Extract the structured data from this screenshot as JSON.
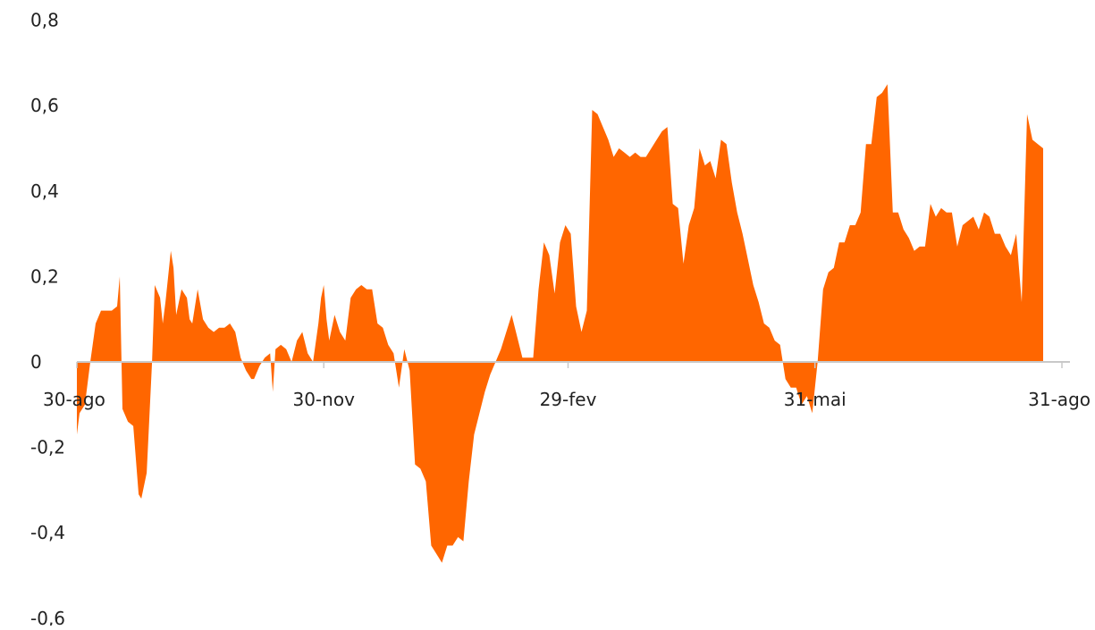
{
  "chart_data": {
    "type": "area",
    "title": "",
    "xlabel": "",
    "ylabel": "",
    "color": "#ff6600",
    "zero_line_color": "#c8c8c8",
    "ylim": [
      -0.6,
      0.8
    ],
    "y_ticks": [
      {
        "value": 0.8,
        "label": "0,8"
      },
      {
        "value": 0.6,
        "label": "0,6"
      },
      {
        "value": 0.4,
        "label": "0,4"
      },
      {
        "value": 0.2,
        "label": "0,2"
      },
      {
        "value": 0,
        "label": "0"
      },
      {
        "value": -0.2,
        "label": "-0,2"
      },
      {
        "value": -0.4,
        "label": "-0,4"
      },
      {
        "value": -0.6,
        "label": "-0,6"
      }
    ],
    "x_ticks": [
      {
        "date": "2023-08-30",
        "label": "30-ago"
      },
      {
        "date": "2023-11-30",
        "label": "30-nov"
      },
      {
        "date": "2024-02-29",
        "label": "29-fev"
      },
      {
        "date": "2024-05-31",
        "label": "31-mai"
      },
      {
        "date": "2024-08-31",
        "label": "31-ago"
      }
    ],
    "xlim": [
      "2023-08-30",
      "2024-09-03"
    ],
    "grid": false,
    "legend": "none",
    "series": [
      {
        "points": [
          [
            "2023-08-30",
            -0.17
          ],
          [
            "2023-08-31",
            -0.12
          ],
          [
            "2023-09-02",
            -0.1
          ],
          [
            "2023-09-04",
            0.0
          ],
          [
            "2023-09-06",
            0.09
          ],
          [
            "2023-09-08",
            0.12
          ],
          [
            "2023-09-10",
            0.12
          ],
          [
            "2023-09-12",
            0.12
          ],
          [
            "2023-09-14",
            0.13
          ],
          [
            "2023-09-15",
            0.2
          ],
          [
            "2023-09-16",
            -0.11
          ],
          [
            "2023-09-18",
            -0.14
          ],
          [
            "2023-09-20",
            -0.15
          ],
          [
            "2023-09-22",
            -0.31
          ],
          [
            "2023-09-23",
            -0.32
          ],
          [
            "2023-09-25",
            -0.26
          ],
          [
            "2023-09-27",
            0.0
          ],
          [
            "2023-09-28",
            0.18
          ],
          [
            "2023-09-30",
            0.15
          ],
          [
            "2023-10-01",
            0.09
          ],
          [
            "2023-10-02",
            0.14
          ],
          [
            "2023-10-04",
            0.26
          ],
          [
            "2023-10-05",
            0.22
          ],
          [
            "2023-10-06",
            0.11
          ],
          [
            "2023-10-08",
            0.17
          ],
          [
            "2023-10-10",
            0.15
          ],
          [
            "2023-10-11",
            0.1
          ],
          [
            "2023-10-12",
            0.09
          ],
          [
            "2023-10-14",
            0.17
          ],
          [
            "2023-10-16",
            0.1
          ],
          [
            "2023-10-18",
            0.08
          ],
          [
            "2023-10-20",
            0.07
          ],
          [
            "2023-10-22",
            0.08
          ],
          [
            "2023-10-24",
            0.08
          ],
          [
            "2023-10-26",
            0.09
          ],
          [
            "2023-10-28",
            0.07
          ],
          [
            "2023-10-30",
            0.01
          ],
          [
            "2023-11-01",
            -0.02
          ],
          [
            "2023-11-03",
            -0.04
          ],
          [
            "2023-11-04",
            -0.04
          ],
          [
            "2023-11-06",
            -0.01
          ],
          [
            "2023-11-08",
            0.01
          ],
          [
            "2023-11-10",
            0.02
          ],
          [
            "2023-11-11",
            -0.07
          ],
          [
            "2023-11-12",
            0.03
          ],
          [
            "2023-11-14",
            0.04
          ],
          [
            "2023-11-16",
            0.03
          ],
          [
            "2023-11-18",
            0.0
          ],
          [
            "2023-11-20",
            0.05
          ],
          [
            "2023-11-22",
            0.07
          ],
          [
            "2023-11-24",
            0.02
          ],
          [
            "2023-11-26",
            0.0
          ],
          [
            "2023-11-28",
            0.09
          ],
          [
            "2023-11-29",
            0.15
          ],
          [
            "2023-11-30",
            0.18
          ],
          [
            "2023-12-01",
            0.1
          ],
          [
            "2023-12-02",
            0.05
          ],
          [
            "2023-12-04",
            0.11
          ],
          [
            "2023-12-06",
            0.07
          ],
          [
            "2023-12-08",
            0.05
          ],
          [
            "2023-12-10",
            0.15
          ],
          [
            "2023-12-12",
            0.17
          ],
          [
            "2023-12-14",
            0.18
          ],
          [
            "2023-12-16",
            0.17
          ],
          [
            "2023-12-18",
            0.17
          ],
          [
            "2023-12-20",
            0.09
          ],
          [
            "2023-12-22",
            0.08
          ],
          [
            "2023-12-24",
            0.04
          ],
          [
            "2023-12-26",
            0.02
          ],
          [
            "2023-12-28",
            -0.06
          ],
          [
            "2023-12-30",
            0.03
          ],
          [
            "2024-01-01",
            -0.02
          ],
          [
            "2024-01-03",
            -0.24
          ],
          [
            "2024-01-05",
            -0.25
          ],
          [
            "2024-01-07",
            -0.28
          ],
          [
            "2024-01-09",
            -0.43
          ],
          [
            "2024-01-11",
            -0.45
          ],
          [
            "2024-01-13",
            -0.47
          ],
          [
            "2024-01-15",
            -0.43
          ],
          [
            "2024-01-17",
            -0.43
          ],
          [
            "2024-01-19",
            -0.41
          ],
          [
            "2024-01-21",
            -0.42
          ],
          [
            "2024-01-23",
            -0.28
          ],
          [
            "2024-01-25",
            -0.17
          ],
          [
            "2024-01-27",
            -0.12
          ],
          [
            "2024-01-29",
            -0.07
          ],
          [
            "2024-01-31",
            -0.03
          ],
          [
            "2024-02-02",
            0.0
          ],
          [
            "2024-02-04",
            0.03
          ],
          [
            "2024-02-06",
            0.07
          ],
          [
            "2024-02-08",
            0.11
          ],
          [
            "2024-02-10",
            0.06
          ],
          [
            "2024-02-12",
            0.01
          ],
          [
            "2024-02-14",
            0.01
          ],
          [
            "2024-02-16",
            0.01
          ],
          [
            "2024-02-18",
            0.17
          ],
          [
            "2024-02-20",
            0.28
          ],
          [
            "2024-02-22",
            0.25
          ],
          [
            "2024-02-24",
            0.16
          ],
          [
            "2024-02-26",
            0.28
          ],
          [
            "2024-02-28",
            0.32
          ],
          [
            "2024-03-01",
            0.3
          ],
          [
            "2024-03-03",
            0.13
          ],
          [
            "2024-03-05",
            0.07
          ],
          [
            "2024-03-07",
            0.12
          ],
          [
            "2024-03-09",
            0.59
          ],
          [
            "2024-03-11",
            0.58
          ],
          [
            "2024-03-13",
            0.55
          ],
          [
            "2024-03-15",
            0.52
          ],
          [
            "2024-03-17",
            0.48
          ],
          [
            "2024-03-19",
            0.5
          ],
          [
            "2024-03-21",
            0.49
          ],
          [
            "2024-03-23",
            0.48
          ],
          [
            "2024-03-25",
            0.49
          ],
          [
            "2024-03-27",
            0.48
          ],
          [
            "2024-03-29",
            0.48
          ],
          [
            "2024-03-31",
            0.5
          ],
          [
            "2024-04-02",
            0.52
          ],
          [
            "2024-04-04",
            0.54
          ],
          [
            "2024-04-06",
            0.55
          ],
          [
            "2024-04-08",
            0.37
          ],
          [
            "2024-04-10",
            0.36
          ],
          [
            "2024-04-12",
            0.23
          ],
          [
            "2024-04-14",
            0.32
          ],
          [
            "2024-04-16",
            0.36
          ],
          [
            "2024-04-18",
            0.5
          ],
          [
            "2024-04-20",
            0.46
          ],
          [
            "2024-04-22",
            0.47
          ],
          [
            "2024-04-24",
            0.43
          ],
          [
            "2024-04-26",
            0.52
          ],
          [
            "2024-04-28",
            0.51
          ],
          [
            "2024-04-30",
            0.42
          ],
          [
            "2024-05-02",
            0.35
          ],
          [
            "2024-05-04",
            0.3
          ],
          [
            "2024-05-06",
            0.24
          ],
          [
            "2024-05-08",
            0.18
          ],
          [
            "2024-05-10",
            0.14
          ],
          [
            "2024-05-12",
            0.09
          ],
          [
            "2024-05-14",
            0.08
          ],
          [
            "2024-05-16",
            0.05
          ],
          [
            "2024-05-18",
            0.04
          ],
          [
            "2024-05-20",
            -0.04
          ],
          [
            "2024-05-22",
            -0.06
          ],
          [
            "2024-05-24",
            -0.06
          ],
          [
            "2024-05-26",
            -0.1
          ],
          [
            "2024-05-28",
            -0.08
          ],
          [
            "2024-05-30",
            -0.12
          ],
          [
            "2024-06-01",
            0.0
          ],
          [
            "2024-06-03",
            0.17
          ],
          [
            "2024-06-05",
            0.21
          ],
          [
            "2024-06-07",
            0.22
          ],
          [
            "2024-06-09",
            0.28
          ],
          [
            "2024-06-11",
            0.28
          ],
          [
            "2024-06-13",
            0.32
          ],
          [
            "2024-06-15",
            0.32
          ],
          [
            "2024-06-17",
            0.35
          ],
          [
            "2024-06-19",
            0.51
          ],
          [
            "2024-06-21",
            0.51
          ],
          [
            "2024-06-23",
            0.62
          ],
          [
            "2024-06-25",
            0.63
          ],
          [
            "2024-06-27",
            0.65
          ],
          [
            "2024-06-29",
            0.35
          ],
          [
            "2024-07-01",
            0.35
          ],
          [
            "2024-07-03",
            0.31
          ],
          [
            "2024-07-05",
            0.29
          ],
          [
            "2024-07-07",
            0.26
          ],
          [
            "2024-07-09",
            0.27
          ],
          [
            "2024-07-11",
            0.27
          ],
          [
            "2024-07-13",
            0.37
          ],
          [
            "2024-07-15",
            0.34
          ],
          [
            "2024-07-17",
            0.36
          ],
          [
            "2024-07-19",
            0.35
          ],
          [
            "2024-07-21",
            0.35
          ],
          [
            "2024-07-23",
            0.27
          ],
          [
            "2024-07-25",
            0.32
          ],
          [
            "2024-07-27",
            0.33
          ],
          [
            "2024-07-29",
            0.34
          ],
          [
            "2024-07-31",
            0.31
          ],
          [
            "2024-08-02",
            0.35
          ],
          [
            "2024-08-04",
            0.34
          ],
          [
            "2024-08-06",
            0.3
          ],
          [
            "2024-08-08",
            0.3
          ],
          [
            "2024-08-10",
            0.27
          ],
          [
            "2024-08-12",
            0.25
          ],
          [
            "2024-08-14",
            0.3
          ],
          [
            "2024-08-16",
            0.14
          ],
          [
            "2024-08-18",
            0.58
          ],
          [
            "2024-08-20",
            0.52
          ],
          [
            "2024-08-22",
            0.51
          ],
          [
            "2024-08-24",
            0.5
          ]
        ]
      }
    ]
  }
}
